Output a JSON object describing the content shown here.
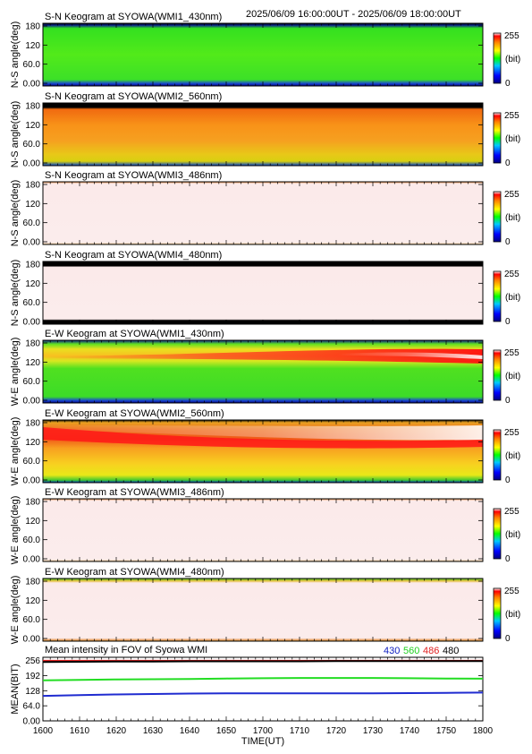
{
  "header": {
    "time_range": "2025/06/09 16:00:00UT - 2025/06/09 18:00:00UT"
  },
  "colorbar": {
    "max_label": "255",
    "min_label": "0",
    "unit_label": "(bit)"
  },
  "chart_data": [
    {
      "type": "heatmap",
      "title": "S-N Keogram at SYOWA(WMI1_430nm)",
      "ylabel": "N-S angle(deg)",
      "yticks": [
        "180",
        "120",
        "60.0",
        "0.00"
      ],
      "ylim": [
        0,
        180
      ],
      "scheme": "green",
      "clim": [
        0,
        255
      ]
    },
    {
      "type": "heatmap",
      "title": "S-N Keogram at SYOWA(WMI2_560nm)",
      "ylabel": "N-S angle(deg)",
      "yticks": [
        "180",
        "120",
        "60.0",
        "0.00"
      ],
      "ylim": [
        0,
        180
      ],
      "scheme": "orange",
      "clim": [
        0,
        255
      ]
    },
    {
      "type": "heatmap",
      "title": "S-N Keogram at SYOWA(WMI3_486nm)",
      "ylabel": "N-S angle(deg)",
      "yticks": [
        "180",
        "120",
        "60.0",
        "0.00"
      ],
      "ylim": [
        0,
        180
      ],
      "scheme": "pale",
      "clim": [
        0,
        255
      ]
    },
    {
      "type": "heatmap",
      "title": "S-N Keogram at SYOWA(WMI4_480nm)",
      "ylabel": "N-S angle(deg)",
      "yticks": [
        "180",
        "120",
        "60.0",
        "0.00"
      ],
      "ylim": [
        0,
        180
      ],
      "scheme": "pale_black",
      "clim": [
        0,
        255
      ]
    },
    {
      "type": "heatmap",
      "title": "E-W Keogram at SYOWA(WMI1_430nm)",
      "ylabel": "W-E angle(deg)",
      "yticks": [
        "180",
        "120",
        "60.0",
        "0.00"
      ],
      "ylim": [
        0,
        180
      ],
      "scheme": "green_band",
      "clim": [
        0,
        255
      ]
    },
    {
      "type": "heatmap",
      "title": "E-W Keogram at SYOWA(WMI2_560nm)",
      "ylabel": "W-E angle(deg)",
      "yticks": [
        "180",
        "120",
        "60.0",
        "0.00"
      ],
      "ylim": [
        0,
        180
      ],
      "scheme": "orange_band",
      "clim": [
        0,
        255
      ]
    },
    {
      "type": "heatmap",
      "title": "E-W Keogram at SYOWA(WMI3_486nm)",
      "ylabel": "W-E angle(deg)",
      "yticks": [
        "180",
        "120",
        "60.0",
        "0.00"
      ],
      "ylim": [
        0,
        180
      ],
      "scheme": "pale",
      "clim": [
        0,
        255
      ]
    },
    {
      "type": "heatmap",
      "title": "E-W Keogram at SYOWA(WMI4_480nm)",
      "ylabel": "W-E angle(deg)",
      "yticks": [
        "180",
        "120",
        "60.0",
        "0.00"
      ],
      "ylim": [
        0,
        180
      ],
      "scheme": "pale_edge",
      "clim": [
        0,
        255
      ]
    },
    {
      "type": "line",
      "title": "Mean intensity in FOV of Syowa WMI",
      "ylabel": "MEAN(BIT)",
      "yticks": [
        "256",
        "192",
        "128",
        "64.0",
        "0.00"
      ],
      "ylim": [
        0,
        270
      ],
      "xlabel": "TIME(UT)",
      "xticks": [
        "1600",
        "1610",
        "1620",
        "1630",
        "1640",
        "1650",
        "1700",
        "1710",
        "1720",
        "1730",
        "1740",
        "1750",
        "1800"
      ],
      "xlim": [
        0,
        120
      ],
      "legend": [
        {
          "name": "430",
          "color": "#1020c0"
        },
        {
          "name": "560",
          "color": "#20d020"
        },
        {
          "name": "486",
          "color": "#e02020"
        },
        {
          "name": "480",
          "color": "#000000"
        }
      ],
      "series": [
        {
          "name": "430",
          "color": "#1f2bd0",
          "x": [
            0,
            10,
            20,
            30,
            40,
            50,
            60,
            70,
            80,
            90,
            100,
            110,
            120
          ],
          "values": [
            106,
            109,
            112,
            114,
            116,
            117,
            117,
            117,
            117,
            117,
            118,
            119,
            120
          ]
        },
        {
          "name": "560",
          "color": "#22dd22",
          "x": [
            0,
            10,
            20,
            30,
            40,
            50,
            60,
            70,
            80,
            90,
            100,
            110,
            120
          ],
          "values": [
            172,
            174,
            176,
            177,
            178,
            180,
            181,
            182,
            182,
            182,
            181,
            180,
            179
          ]
        },
        {
          "name": "486",
          "color": "#e02020",
          "x": [
            0,
            10,
            20,
            30,
            40,
            50,
            60,
            70,
            80,
            90,
            100,
            110,
            120
          ],
          "values": [
            255,
            255,
            255,
            255,
            255,
            255,
            255,
            255,
            255,
            255,
            255,
            255,
            255
          ]
        },
        {
          "name": "480",
          "color": "#000000",
          "x": [
            0,
            10,
            20,
            30,
            40,
            50,
            60,
            70,
            80,
            90,
            100,
            110,
            120
          ],
          "values": [
            250,
            251,
            252,
            252,
            253,
            253,
            253,
            253,
            254,
            254,
            254,
            254,
            254
          ]
        }
      ]
    }
  ]
}
